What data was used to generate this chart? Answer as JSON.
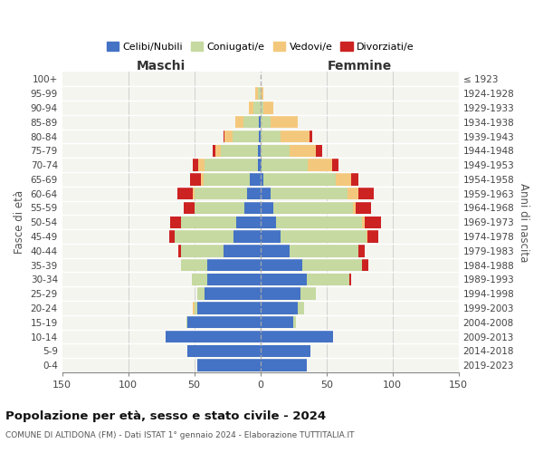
{
  "age_groups": [
    "0-4",
    "5-9",
    "10-14",
    "15-19",
    "20-24",
    "25-29",
    "30-34",
    "35-39",
    "40-44",
    "45-49",
    "50-54",
    "55-59",
    "60-64",
    "65-69",
    "70-74",
    "75-79",
    "80-84",
    "85-89",
    "90-94",
    "95-99",
    "100+"
  ],
  "birth_years": [
    "2019-2023",
    "2014-2018",
    "2009-2013",
    "2004-2008",
    "1999-2003",
    "1994-1998",
    "1989-1993",
    "1984-1988",
    "1979-1983",
    "1974-1978",
    "1969-1973",
    "1964-1968",
    "1959-1963",
    "1954-1958",
    "1949-1953",
    "1944-1948",
    "1939-1943",
    "1934-1938",
    "1929-1933",
    "1924-1928",
    "≤ 1923"
  ],
  "maschi": {
    "celibi": [
      48,
      55,
      72,
      55,
      48,
      42,
      40,
      40,
      28,
      20,
      18,
      12,
      10,
      8,
      2,
      2,
      1,
      1,
      0,
      0,
      0
    ],
    "coniugati": [
      0,
      0,
      0,
      1,
      2,
      6,
      12,
      20,
      32,
      45,
      42,
      38,
      40,
      35,
      40,
      28,
      20,
      12,
      5,
      2,
      0
    ],
    "vedovi": [
      0,
      0,
      0,
      0,
      1,
      0,
      0,
      0,
      0,
      0,
      0,
      0,
      1,
      2,
      5,
      4,
      6,
      6,
      4,
      2,
      0
    ],
    "divorziati": [
      0,
      0,
      0,
      0,
      0,
      0,
      0,
      0,
      2,
      4,
      8,
      8,
      12,
      8,
      4,
      2,
      1,
      0,
      0,
      0,
      0
    ]
  },
  "femmine": {
    "nubili": [
      35,
      38,
      55,
      25,
      28,
      30,
      35,
      32,
      22,
      15,
      12,
      10,
      8,
      2,
      1,
      0,
      0,
      0,
      0,
      0,
      0
    ],
    "coniugate": [
      0,
      0,
      0,
      2,
      5,
      12,
      32,
      45,
      52,
      65,
      65,
      60,
      58,
      55,
      35,
      22,
      15,
      8,
      2,
      0,
      0
    ],
    "vedove": [
      0,
      0,
      0,
      0,
      0,
      0,
      0,
      0,
      0,
      1,
      2,
      2,
      8,
      12,
      18,
      20,
      22,
      20,
      8,
      2,
      0
    ],
    "divorziate": [
      0,
      0,
      0,
      0,
      0,
      0,
      2,
      5,
      5,
      8,
      12,
      12,
      12,
      5,
      5,
      5,
      2,
      0,
      0,
      0,
      0
    ]
  },
  "colors": {
    "celibi": "#4472c4",
    "coniugati": "#c5d9a0",
    "vedovi": "#f4c87c",
    "divorziati": "#cc2222"
  },
  "xlim": 150,
  "title_main": "Popolazione per età, sesso e stato civile - 2024",
  "title_sub": "COMUNE DI ALTIDONA (FM) - Dati ISTAT 1° gennaio 2024 - Elaborazione TUTTITALIA.IT",
  "ylabel_left": "Fasce di età",
  "ylabel_right": "Anni di nascita",
  "legend_labels": [
    "Celibi/Nubili",
    "Coniugati/e",
    "Vedovi/e",
    "Divorziati/e"
  ],
  "maschi_label": "Maschi",
  "femmine_label": "Femmine",
  "bg_color": "#f5f5f0",
  "bar_bg_color": "#e8e8e0"
}
